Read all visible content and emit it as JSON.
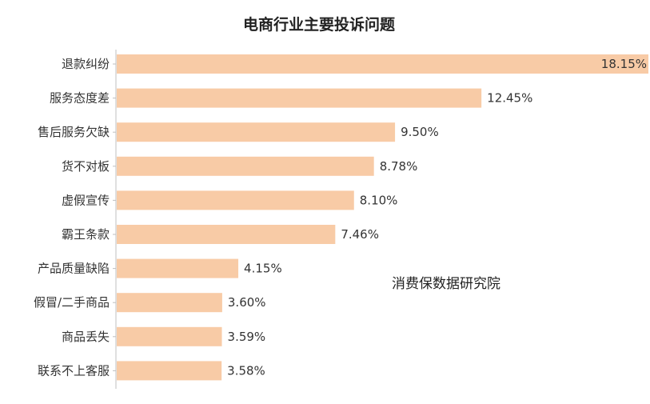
{
  "chart_data": {
    "type": "bar",
    "orientation": "horizontal",
    "title": "电商行业主要投诉问题",
    "categories": [
      "退款纠纷",
      "服务态度差",
      "售后服务欠缺",
      "货不对板",
      "虚假宣传",
      "霸王条款",
      "产品质量缺陷",
      "假冒/二手商品",
      "商品丢失",
      "联系不上客服"
    ],
    "values": [
      18.15,
      12.45,
      9.5,
      8.78,
      8.1,
      7.46,
      4.15,
      3.6,
      3.59,
      3.58
    ],
    "value_labels": [
      "18.15%",
      "12.45%",
      "9.50%",
      "8.78%",
      "8.10%",
      "7.46%",
      "4.15%",
      "3.60%",
      "3.59%",
      "3.58%"
    ],
    "xlabel": "",
    "ylabel": "",
    "xlim": [
      0,
      18.15
    ],
    "grid": false,
    "legend": "none",
    "bar_color": "#F8CBA6"
  },
  "watermark": "消费保数据研究院"
}
